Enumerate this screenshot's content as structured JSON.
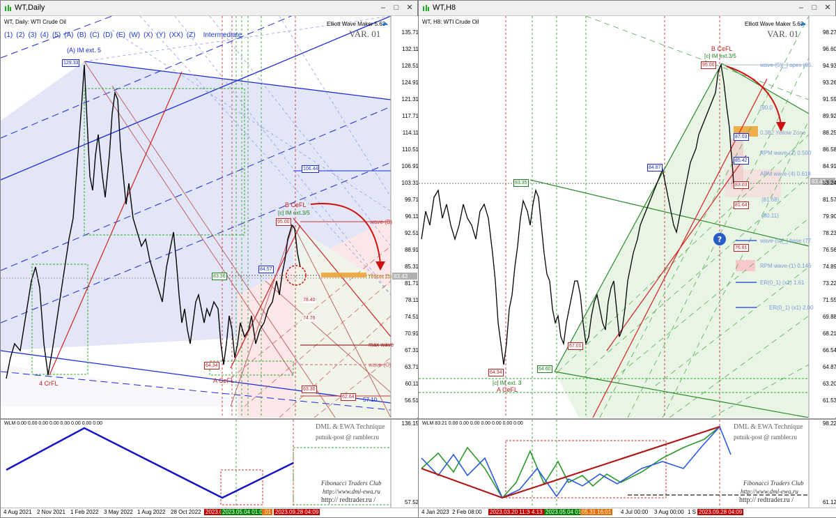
{
  "left": {
    "title": "WT,Daily",
    "chart_info": "WT, Daily:  WTI Crude Oil",
    "ewm": "Elliott Wave Maker 5.63",
    "var": "VAR. 01",
    "wave_buttons": [
      "(1)",
      "(2)",
      "(3)",
      "(4)",
      "(5)",
      "(A)",
      "(B)",
      "(C)",
      "(D)",
      "(E)",
      "(W)",
      "(X)",
      "(Y)",
      "(XX)",
      "(Z)"
    ],
    "degree": "Intermediate",
    "price_axis": [
      "135.71",
      "132.11",
      "128.51",
      "124.91",
      "121.31",
      "117.71",
      "114.11",
      "110.51",
      "106.91",
      "103.31",
      "99.71",
      "96.11",
      "92.51",
      "88.91",
      "85.31",
      "81.71",
      "78.11",
      "74.51",
      "70.91",
      "67.31",
      "63.71",
      "60.11",
      "56.51"
    ],
    "date_axis": [
      "4 Aug 2021",
      "2 Nov 2021",
      "1 Feb 2022",
      "3 May 2022",
      "1 Aug 2022",
      "28 Oct 2022"
    ],
    "date_highlights": [
      "2023.0",
      "2023.05.04 01:05",
      ":01",
      "2023.09.28 04:09"
    ],
    "labels": {
      "im_ext": "(A) IM ext. 5",
      "top_price": "129.33",
      "b_cefl": "B CeFL",
      "c_im": "[c] IM ext.3/5",
      "a_cefl": "A CeFL",
      "four_cefl": "4 CrFL",
      "price_95": "95.00",
      "price_106": "106.44",
      "price_8455": "84.57",
      "price_8337": "83.36",
      "price_6434": "64.34",
      "price_7840": "78.40",
      "price_7476": "74.76",
      "price_6264": "62.64",
      "price_5710": "57.10",
      "price_6330": "63.30",
      "yellow": "Yellow Zo",
      "max_wave": "max wave",
      "wave_b": "wave-(B)",
      "wave_c": "wave-(C)",
      "cur": "83.43"
    },
    "ind": {
      "title": "WLM 0.00 0.00 0.00 0.00 0.00 0.00 0.00 0.00",
      "axis_top": "136.15",
      "axis_bot": "57.52",
      "dml": "DML & EWA Technique",
      "mail": "putnik-post @ rambler.ru",
      "fib": "Fibonacci    Traders    Club",
      "url1": "http://www.dml-ewa.ru",
      "url2": "http:// redtrader.ru /"
    }
  },
  "right": {
    "title": "WT,H8",
    "chart_info": "WT, H8:  WTI Crude Oil",
    "ewm": "Elliott Wave Maker 5.63",
    "var": "VAR. 01",
    "price_axis": [
      "98.27",
      "96.60",
      "94.93",
      "93.26",
      "91.59",
      "89.92",
      "88.25",
      "86.58",
      "84.91",
      "83.24",
      "81.57",
      "79.90",
      "78.23",
      "76.56",
      "74.89",
      "73.22",
      "71.55",
      "69.88",
      "68.21",
      "66.54",
      "64.87",
      "63.20",
      "61.53"
    ],
    "date_axis": [
      "4 Jan 2023",
      "2 Feb 08:00",
      "4 Jul 00:00",
      "3 Aug 00:00",
      "1 S"
    ],
    "date_highlights": [
      "2023.03.20 11:36",
      "4.13",
      "2023.05.04 01:05",
      "05.31 16:01",
      "2023.09.28 04:09"
    ],
    "labels": {
      "b_cefl": "B CeFL",
      "c_im": "[c] IM ext.3/5",
      "a_cefl": "A CeFL",
      "c_im3": "[c] IM ext. 3",
      "p95": "95.00",
      "p8335": "83.35",
      "p6434": "64.34",
      "p6460": "64.60",
      "p6701": "67.01",
      "p8487": "84.87",
      "p8703": "87.03",
      "p8542": "85.42",
      "p8303": "83.03",
      "p8164": "81.64",
      "p7681": "76.81",
      "cur": "83.43",
      "apex": "wave-(5)[_] apex (95.",
      "zone": "0.382 Yellow Zone",
      "rpm1": "RPM wave-(2) 0.500",
      "apm": "APM wave-(4) 0.618",
      "b168": "(81.68)",
      "b011": "(80.11)",
      "base": "wave-(5)[_] base (77.",
      "rpm2": "RPM wave-(1) 0.146",
      "er1": "ER(0_1) (x1) 1.61",
      "er2": "ER(0_1) (x1) 2.00",
      "e90": "[90.0"
    },
    "ind": {
      "title": "WLM 83.21 0.00 0.00 0.00 0.00 0.00 0.00 0.00",
      "axis_top": "98.22",
      "axis_bot": "61.12",
      "dml": "DML & EWA Technique",
      "mail": "putnik-post @ rambler.ru",
      "fib": "Fibonacci    Traders    Club",
      "url1": "http://www.dml-ewa.ru",
      "url2": "http:// redtrader.ru /"
    }
  }
}
